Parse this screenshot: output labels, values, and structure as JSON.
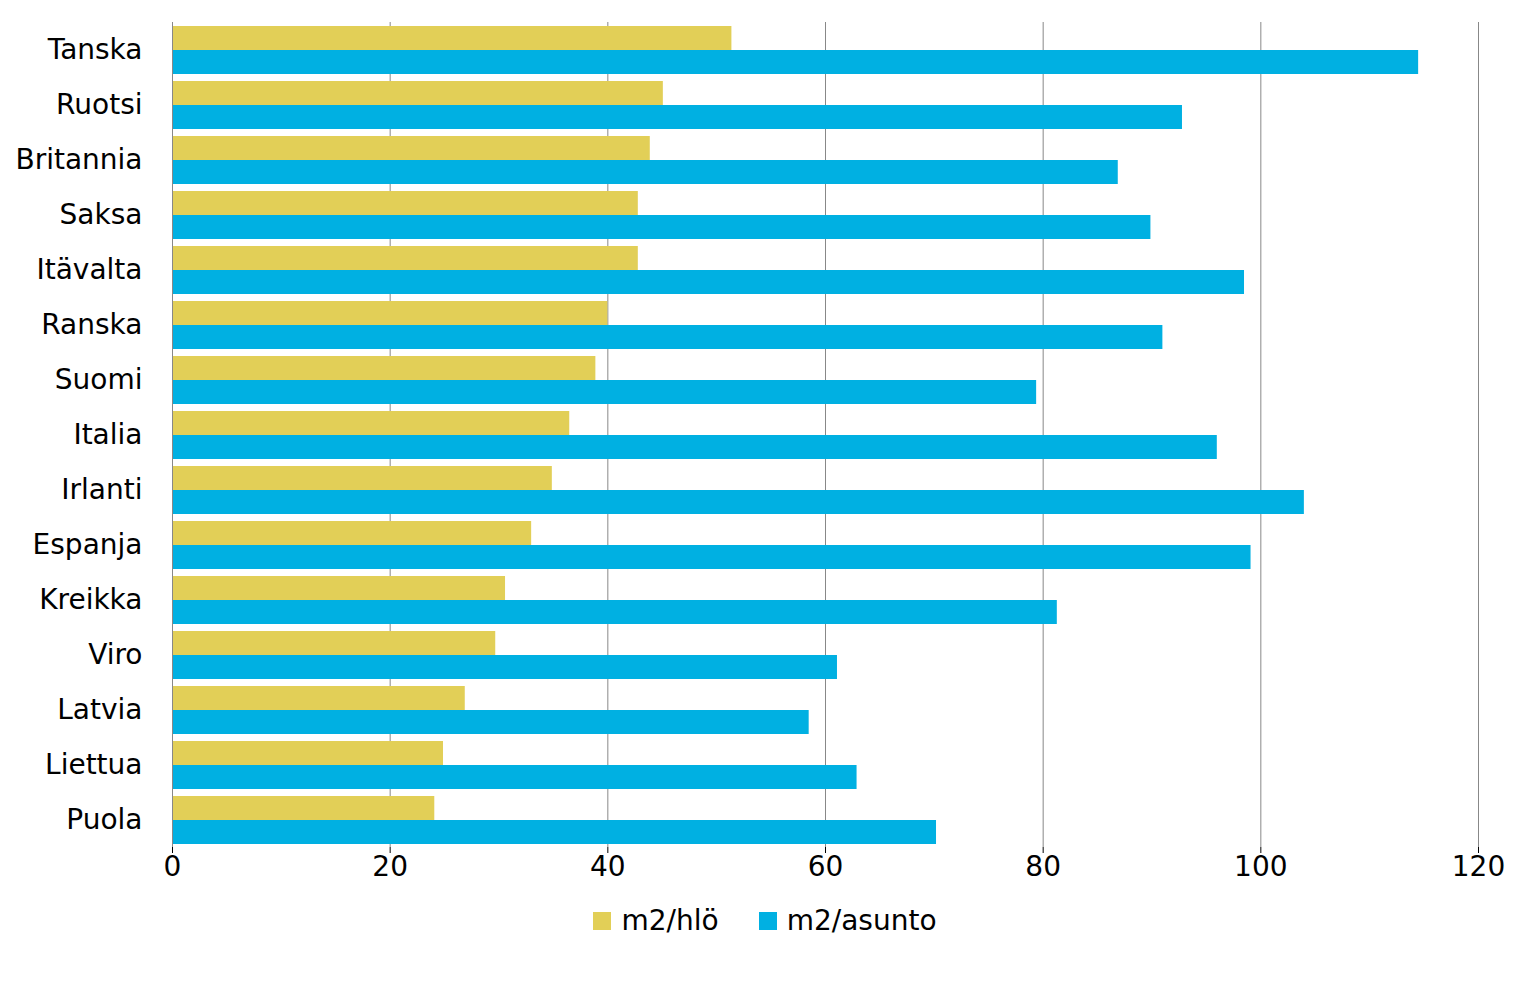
{
  "chart_data": {
    "type": "bar",
    "orientation": "horizontal",
    "grid": true,
    "legend": "bottom",
    "categories": [
      "Tanska",
      "Ruotsi",
      "Britannia",
      "Saksa",
      "Itävalta",
      "Ranska",
      "Suomi",
      "Italia",
      "Irlanti",
      "Espanja",
      "Kreikka",
      "Viro",
      "Latvia",
      "Liettua",
      "Puola"
    ],
    "series": [
      {
        "name": "m2/hlö",
        "color": "#e2cf57",
        "values": [
          51.4,
          45.1,
          43.9,
          42.8,
          42.8,
          40,
          38.9,
          36.5,
          34.9,
          33,
          30.6,
          29.7,
          26.9,
          24.9,
          24.1
        ]
      },
      {
        "name": "m2/asunto",
        "color": "#00b0e2",
        "values": [
          114.5,
          92.8,
          86.9,
          89.9,
          98.5,
          91,
          79.4,
          96,
          104,
          99.1,
          81.3,
          61.1,
          58.5,
          62.9,
          70.2
        ]
      }
    ],
    "xlim": [
      0,
      120
    ],
    "xticks": [
      0,
      20,
      40,
      60,
      80,
      100,
      120
    ]
  }
}
